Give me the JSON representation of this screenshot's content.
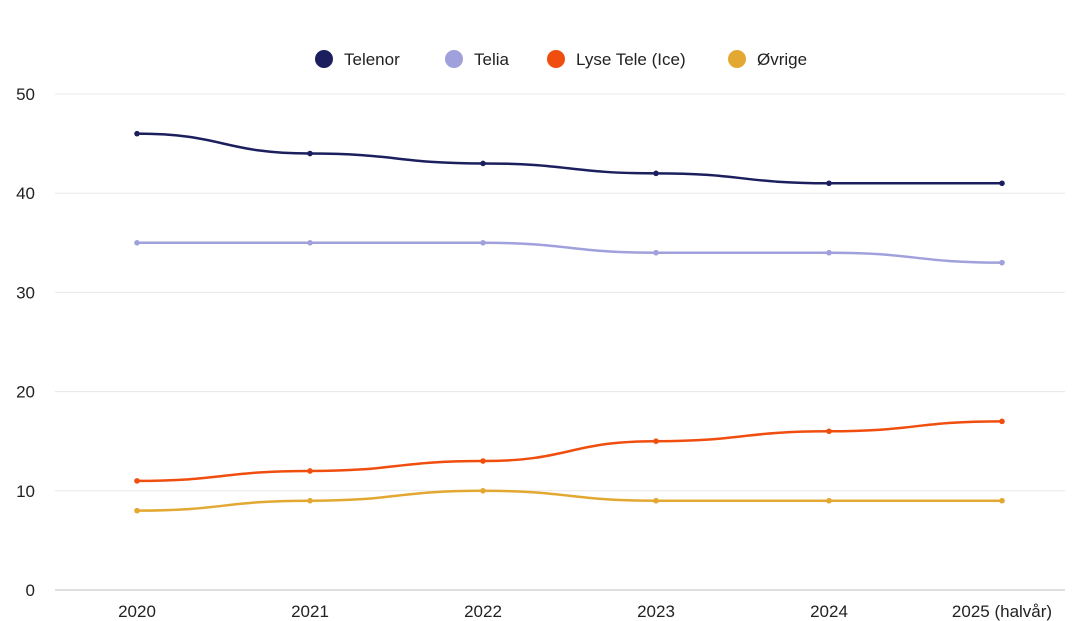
{
  "chart_data": {
    "type": "line",
    "categories": [
      "2020",
      "2021",
      "2022",
      "2023",
      "2024",
      "2025 (halvår)"
    ],
    "series": [
      {
        "name": "Telenor",
        "color": "#1b1f5e",
        "values": [
          46,
          44,
          43,
          42,
          41,
          41
        ]
      },
      {
        "name": "Telia",
        "color": "#a0a0dc",
        "values": [
          35,
          35,
          35,
          34,
          34,
          33
        ]
      },
      {
        "name": "Lyse Tele (Ice)",
        "color": "#f04e0f",
        "values": [
          11,
          12,
          13,
          15,
          16,
          17
        ]
      },
      {
        "name": "Øvrige",
        "color": "#e2a832",
        "values": [
          8,
          9,
          10,
          9,
          9,
          9
        ]
      }
    ],
    "ylim": [
      0,
      50
    ],
    "yticks": [
      0,
      10,
      20,
      30,
      40,
      50
    ],
    "grid": true,
    "legend_position": "top-center"
  }
}
